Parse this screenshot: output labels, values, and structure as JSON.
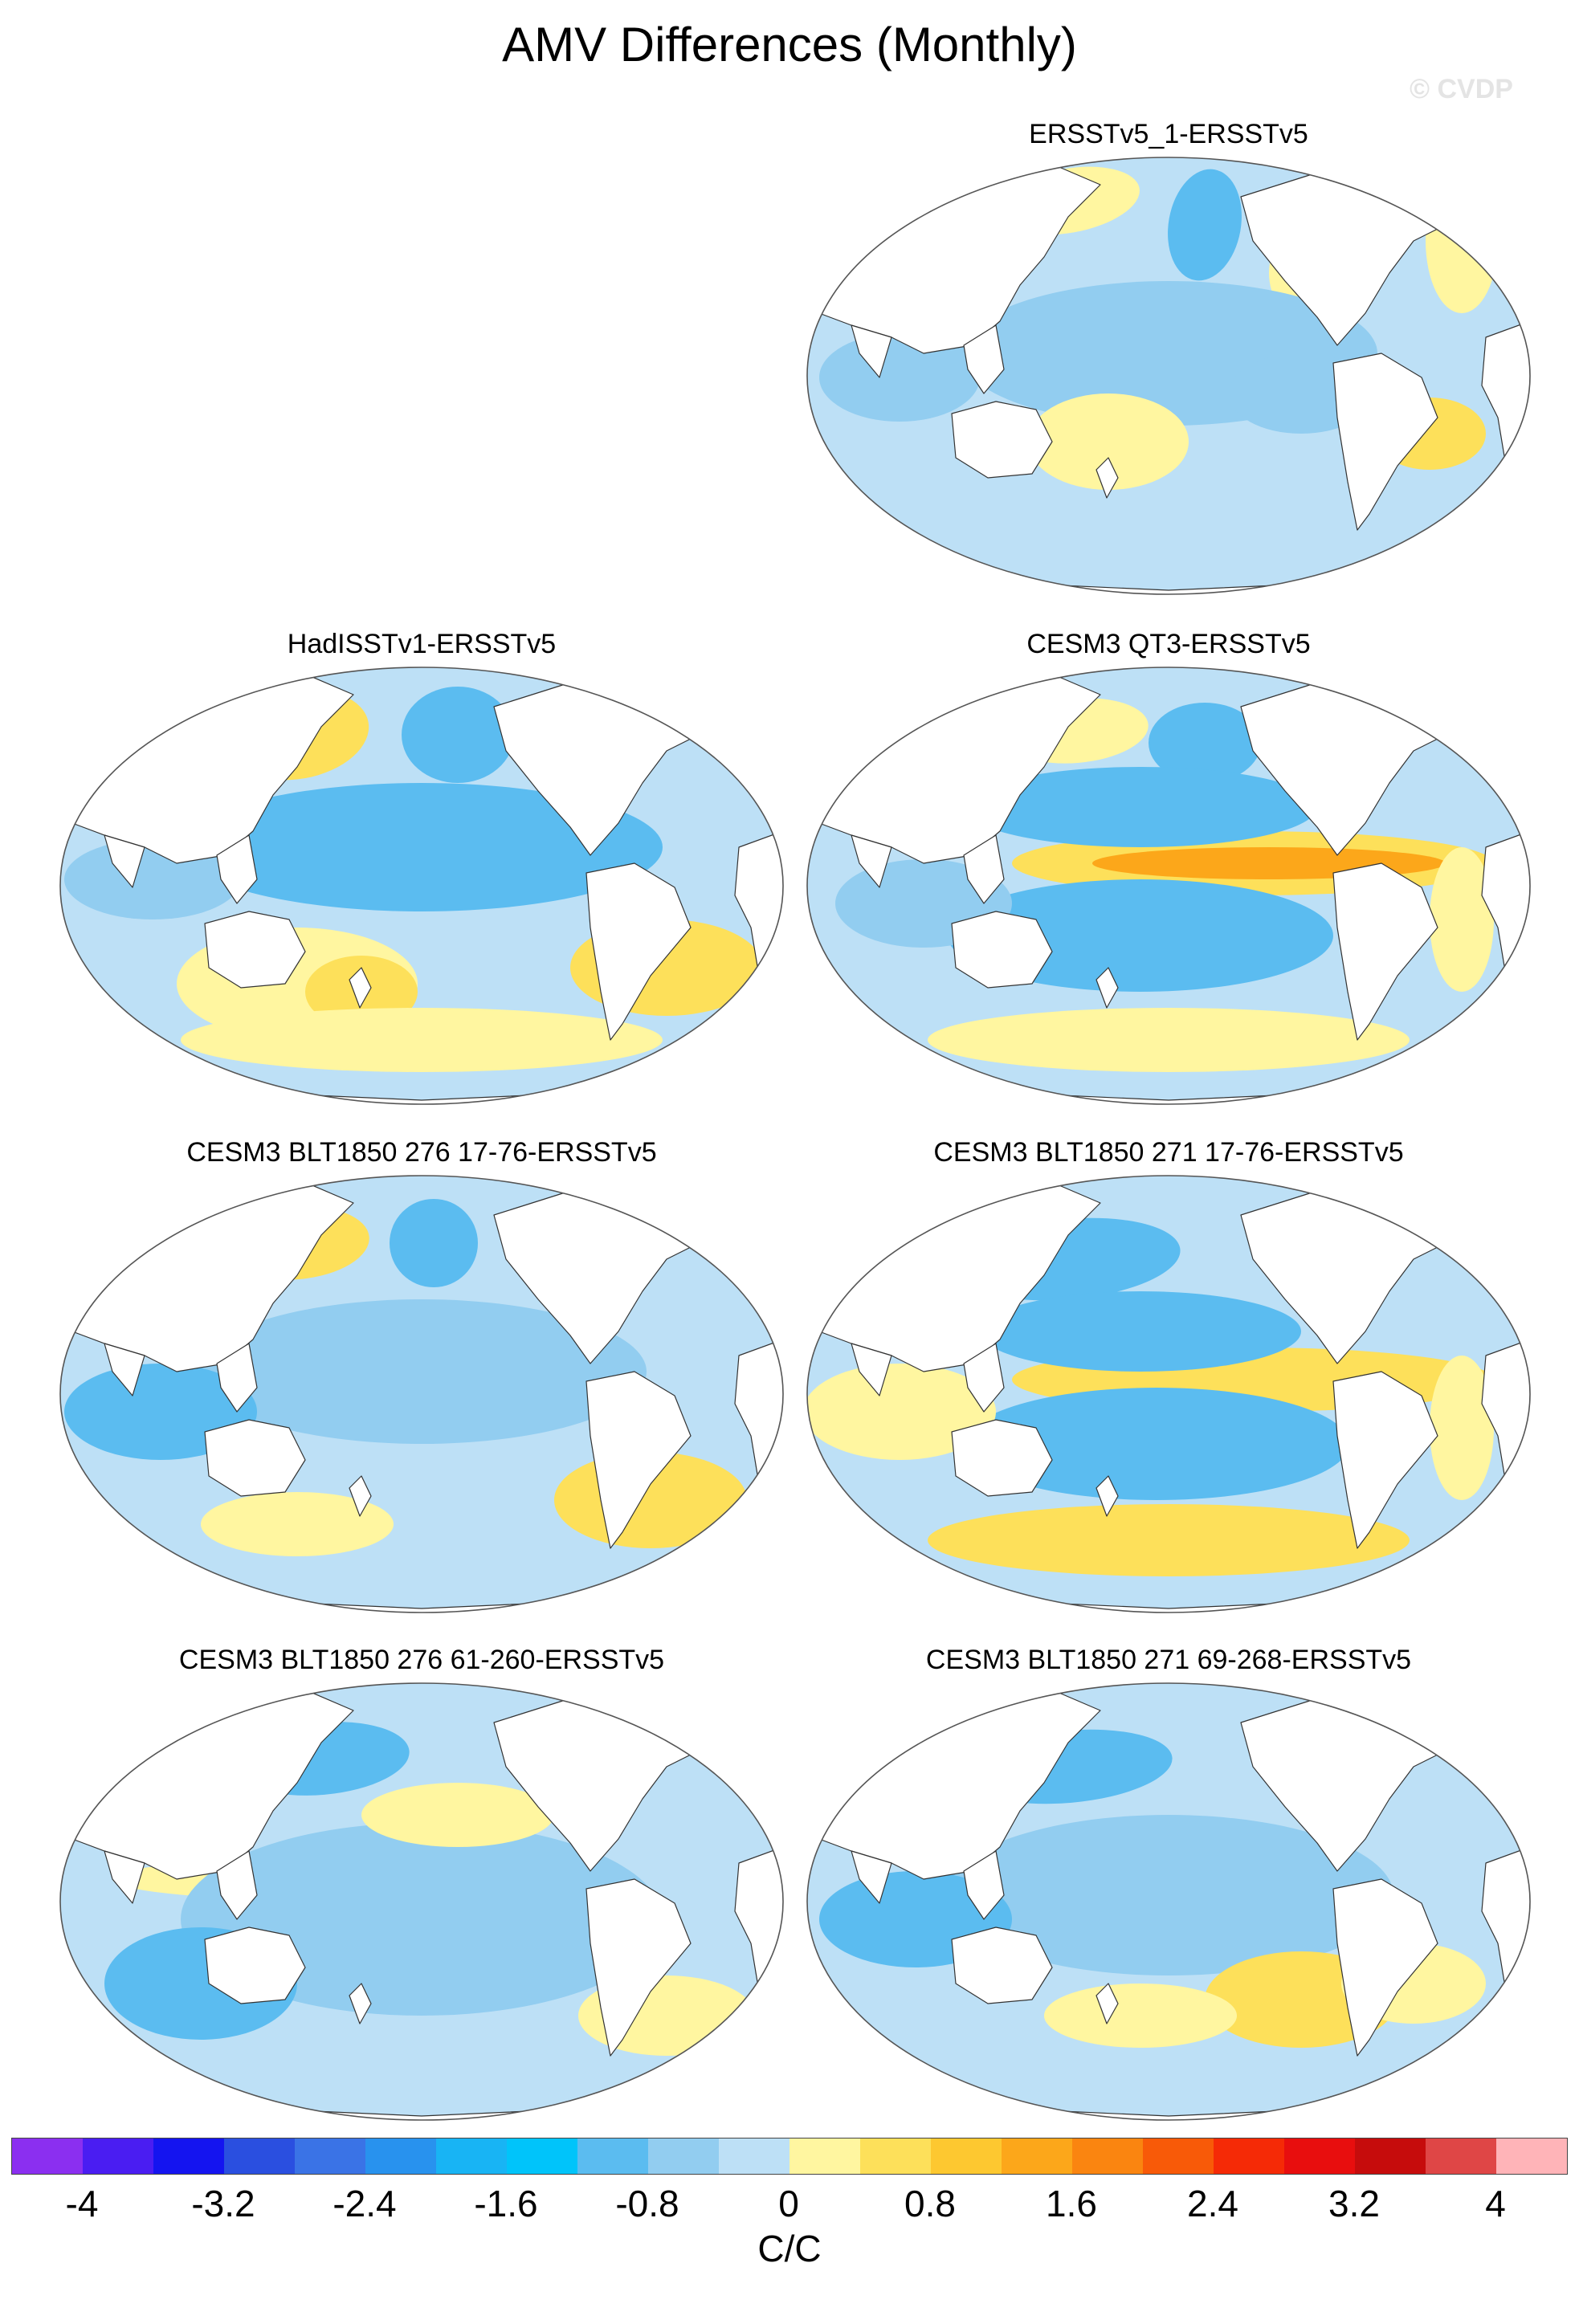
{
  "figure": {
    "title": "AMV Differences (Monthly)",
    "watermark": "© CVDP"
  },
  "panels": [
    {
      "title": "ERSSTv5_1-ERSSTv5",
      "position": "top-right"
    },
    {
      "title": "HadISSTv1-ERSSTv5",
      "position": "row2-left"
    },
    {
      "title": "CESM3 QT3-ERSSTv5",
      "position": "row2-right"
    },
    {
      "title": "CESM3 BLT1850 276 17-76-ERSSTv5",
      "position": "row3-left"
    },
    {
      "title": "CESM3 BLT1850 271 17-76-ERSSTv5",
      "position": "row3-right"
    },
    {
      "title": "CESM3 BLT1850 276 61-260-ERSSTv5",
      "position": "row4-left"
    },
    {
      "title": "CESM3 BLT1850 271 69-268-ERSSTv5",
      "position": "row4-right"
    }
  ],
  "colorbar": {
    "units": "C/C",
    "labels": [
      "-4",
      "-3.2",
      "-2.4",
      "-1.6",
      "-0.8",
      "0",
      "0.8",
      "1.6",
      "2.4",
      "3.2",
      "4"
    ],
    "colors": [
      "#8b2ff0",
      "#4a1df2",
      "#1414f0",
      "#2a4fe0",
      "#3a73e6",
      "#2892ee",
      "#18b4f4",
      "#00c4fa",
      "#5bbcf0",
      "#92cdf0",
      "#bde0f6",
      "#fff6a0",
      "#fde05a",
      "#fdc830",
      "#fca71a",
      "#fa8510",
      "#f85a08",
      "#f52a06",
      "#e80e0e",
      "#c60c0c",
      "#df4646",
      "#ffb4b8"
    ]
  },
  "map_colors": {
    "ocean_base": "#bde0f6",
    "weak_negative": "#92cdf0",
    "moderate_negative": "#5bbcf0",
    "weak_positive": "#fff6a0",
    "moderate_positive": "#fde05a",
    "strong_positive": "#fca71a",
    "very_strong_positive": "#e80e0e",
    "land": "#ffffff",
    "coastline": "#333333"
  }
}
